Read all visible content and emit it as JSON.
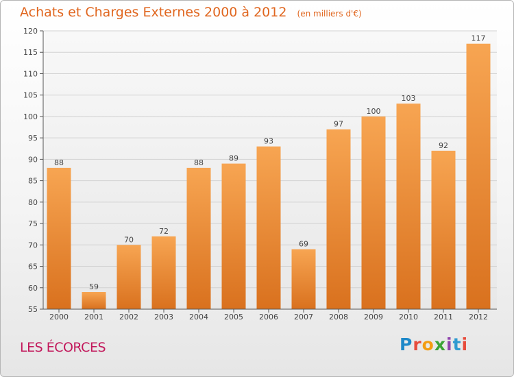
{
  "header": {
    "title": "Achats et Charges Externes 2000 à 2012",
    "subtitle": "(en milliers d'€)"
  },
  "footer": {
    "commune": "LES ÉCORCES",
    "brand": "Proxiti"
  },
  "colors": {
    "bar_top": "#f7a552",
    "bar_bottom": "#d9711e",
    "title": "#e0661f",
    "commune": "#c2185b"
  },
  "chart_data": {
    "type": "bar",
    "title": "Achats et Charges Externes 2000 à 2012",
    "subtitle": "(en milliers d'€)",
    "xlabel": "",
    "ylabel": "",
    "categories": [
      "2000",
      "2001",
      "2002",
      "2003",
      "2004",
      "2005",
      "2006",
      "2007",
      "2008",
      "2009",
      "2010",
      "2011",
      "2012"
    ],
    "values": [
      88,
      59,
      70,
      72,
      88,
      89,
      93,
      69,
      97,
      100,
      103,
      92,
      117
    ],
    "ylim": [
      55,
      120
    ],
    "yticks": [
      55,
      60,
      65,
      70,
      75,
      80,
      85,
      90,
      95,
      100,
      105,
      110,
      115,
      120
    ],
    "grid": true,
    "legend": "none"
  }
}
